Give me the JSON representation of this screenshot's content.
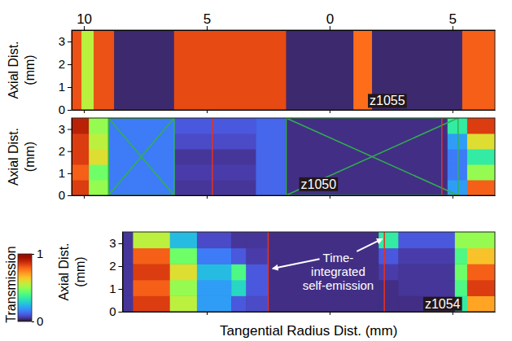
{
  "chart_data": {
    "type": "heatmap",
    "xlabel": "Tangential Radius Dist. (mm)",
    "ylabel": "Axial Dist. (mm)",
    "colorbar": {
      "label": "Transmission",
      "range": [
        0,
        1
      ],
      "ticks": [
        0,
        1
      ]
    },
    "panels": [
      {
        "label": "z1055",
        "label_at": [
          2.35,
          0.2
        ],
        "xlim": [
          -10.5,
          6.73
        ],
        "ylim": [
          0,
          3.5
        ],
        "xticks": [
          {
            "value": -10,
            "label": "10"
          },
          {
            "value": -5,
            "label": "5"
          },
          0,
          5
        ],
        "yticks": [
          0,
          1,
          2,
          3
        ],
        "tick_labels": true,
        "x_edges": [
          -10.5,
          -10.1,
          -9.6,
          -8.77,
          -6.33,
          -1.77,
          0.97,
          1.73,
          5.4,
          6.73
        ],
        "y_edges": [
          0,
          3.5
        ],
        "values": [
          [
            0.82,
            0.55,
            0.82,
            0.03,
            0.83,
            0.03,
            0.78,
            0.03,
            0.8
          ]
        ]
      },
      {
        "label": "z1050",
        "label_at": [
          -0.45,
          0.3
        ],
        "xlim": [
          -10.5,
          6.73
        ],
        "ylim": [
          0,
          3.5
        ],
        "xticks": [
          {
            "value": -10,
            "label": "10"
          },
          {
            "value": -5,
            "label": "5"
          },
          0,
          5
        ],
        "yticks": [
          0,
          1,
          2,
          3
        ],
        "tick_labels": "y",
        "x_edges": [
          -10.5,
          -9.8,
          -9.0,
          -6.3,
          -3.0,
          -1.8,
          4.8,
          5.6,
          6.73
        ],
        "y_edges": [
          0,
          0.7,
          1.4,
          2.1,
          2.8,
          3.5
        ],
        "values": [
          [
            0.85,
            0.5,
            0.15,
            0.05,
            0.12,
            0.04,
            0.2,
            0.8
          ],
          [
            0.8,
            0.45,
            0.15,
            0.06,
            0.12,
            0.04,
            0.15,
            0.5
          ],
          [
            0.85,
            0.6,
            0.15,
            0.05,
            0.12,
            0.04,
            0.15,
            0.35
          ],
          [
            0.85,
            0.55,
            0.15,
            0.08,
            0.12,
            0.04,
            0.2,
            0.6
          ],
          [
            0.9,
            0.5,
            0.15,
            0.1,
            0.12,
            0.04,
            0.35,
            0.85
          ]
        ],
        "green_boxes": [
          [
            -9.0,
            -6.33
          ],
          [
            -1.77,
            5.23
          ]
        ],
        "red_lines": [
          -4.77,
          4.57
        ]
      },
      {
        "label": "z1054",
        "label_at": [
          4.6,
          0.15
        ],
        "xlim": [
          -8.43,
          6.73
        ],
        "ylim": [
          0,
          3.5
        ],
        "xticks": [
          {
            "value": -5,
            "label": "5"
          },
          0,
          5
        ],
        "yticks": [
          0,
          1,
          2,
          3
        ],
        "tick_labels": "y",
        "x_edges": [
          -8.43,
          -8.0,
          -6.5,
          -5.4,
          -4.0,
          -3.4,
          -2.5,
          2.0,
          2.8,
          5.1,
          5.6,
          6.73
        ],
        "y_edges": [
          0,
          0.7,
          1.4,
          2.1,
          2.8,
          3.5
        ],
        "values": [
          [
            0.05,
            0.85,
            0.55,
            0.2,
            0.1,
            0.08,
            0.04,
            0.04,
            0.04,
            0.35,
            0.7
          ],
          [
            0.05,
            0.8,
            0.5,
            0.2,
            0.3,
            0.1,
            0.04,
            0.04,
            0.05,
            0.4,
            0.85
          ],
          [
            0.05,
            0.85,
            0.6,
            0.25,
            0.4,
            0.1,
            0.04,
            0.06,
            0.05,
            0.45,
            0.8
          ],
          [
            0.05,
            0.8,
            0.45,
            0.15,
            0.1,
            0.06,
            0.04,
            0.1,
            0.06,
            0.4,
            0.65
          ],
          [
            0.05,
            0.55,
            0.25,
            0.08,
            0.05,
            0.05,
            0.04,
            0.35,
            0.1,
            0.5,
            0.5
          ]
        ],
        "red_lines": [
          -2.5,
          2.23
        ],
        "annotation": {
          "lines": [
            "Time-",
            "integrated",
            "self-emission"
          ],
          "at": [
            0.35,
            2.65
          ],
          "targets": [
            [
              -2.32,
              1.89
            ],
            [
              2.15,
              3.2
            ]
          ]
        }
      }
    ]
  }
}
